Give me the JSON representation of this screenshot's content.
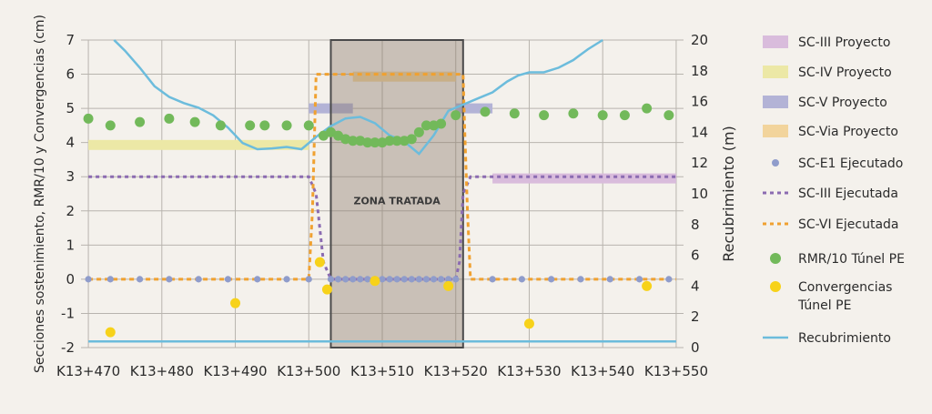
{
  "chart_data": {
    "type": "line",
    "x_categories": [
      "K13+470",
      "K13+480",
      "K13+490",
      "K13+500",
      "K13+510",
      "K13+520",
      "K13+530",
      "K13+540",
      "K13+550"
    ],
    "x_chainage_m": [
      470,
      480,
      490,
      500,
      510,
      520,
      530,
      540,
      550
    ],
    "xlim": [
      469,
      551
    ],
    "y_left": {
      "label": "Secciones sostenimiento, RMR/10 y Convergencias (cm)",
      "ylim": [
        -2,
        7
      ],
      "ticks": [
        "-2",
        "-1",
        "0",
        "1",
        "2",
        "3",
        "4",
        "5",
        "6",
        "7"
      ]
    },
    "y_right": {
      "label": "Recubrimiento (m)",
      "ylim": [
        0,
        20
      ],
      "ticks": [
        "0",
        "2",
        "4",
        "6",
        "8",
        "10",
        "12",
        "14",
        "16",
        "18",
        "20"
      ]
    },
    "zone": {
      "label": "ZONA TRATADA",
      "x_from": 503,
      "x_to": 521
    },
    "legend": {
      "placement": "right",
      "items": [
        {
          "name": "SC-III Proyecto",
          "color": "#d9bcdc",
          "kind": "band"
        },
        {
          "name": "SC-IV Proyecto",
          "color": "#ece8a6",
          "kind": "band"
        },
        {
          "name": "SC-V Proyecto",
          "color": "#b3b3d6",
          "kind": "band"
        },
        {
          "name": "SC-Via Proyecto",
          "color": "#f2d49c",
          "kind": "band"
        },
        {
          "name": "SC-E1 Ejecutado",
          "color": "#8f9ccb",
          "kind": "dot"
        },
        {
          "name": "SC-III Ejecutada",
          "color": "#8b6bb1",
          "kind": "dash"
        },
        {
          "name": "SC-VI Ejecutada",
          "color": "#f0a130",
          "kind": "dash"
        },
        {
          "name": "RMR/10 Túnel PE",
          "color": "#72b95a",
          "kind": "bigdot"
        },
        {
          "name": "Convergencias Túnel PE",
          "color": "#f7d21a",
          "kind": "bigdot"
        },
        {
          "name": "Recubrimiento",
          "color": "#6cbcdc",
          "kind": "line"
        }
      ]
    },
    "bands": [
      {
        "series": "SC-IV Proyecto",
        "x_from": 470,
        "x_to": 500,
        "y_center": 3.93
      },
      {
        "series": "SC-V Proyecto",
        "x_from": 500,
        "x_to": 506,
        "y_center": 5.0
      },
      {
        "series": "SC-Via Proyecto",
        "x_from": 506,
        "x_to": 520,
        "y_center": 5.93
      },
      {
        "series": "SC-V Proyecto",
        "x_from": 520,
        "x_to": 525,
        "y_center": 5.0
      },
      {
        "series": "SC-III Proyecto",
        "x_from": 525,
        "x_to": 550,
        "y_center": 2.95
      }
    ],
    "series": [
      {
        "name": "SC-III Ejecutada",
        "values_xy": [
          [
            470,
            3
          ],
          [
            500,
            3
          ],
          [
            501,
            2.5
          ],
          [
            502,
            0.5
          ],
          [
            503,
            0
          ],
          [
            520,
            0
          ],
          [
            520.5,
            0.5
          ],
          [
            521,
            2.5
          ],
          [
            522,
            3
          ],
          [
            550,
            3
          ]
        ]
      },
      {
        "name": "SC-VI Ejecutada",
        "values_xy": [
          [
            470,
            0
          ],
          [
            500,
            0
          ],
          [
            500.5,
            2
          ],
          [
            501,
            6
          ],
          [
            501.8,
            6
          ],
          [
            521,
            6
          ],
          [
            521.2,
            4.5
          ],
          [
            521.6,
            2
          ],
          [
            522,
            0
          ],
          [
            550,
            0
          ]
        ]
      },
      {
        "name": "SC-E1 Ejecutado",
        "x": [
          470,
          473,
          477,
          481,
          485,
          489,
          493,
          497,
          500,
          503,
          504,
          505,
          506,
          507,
          508,
          509,
          510,
          511,
          512,
          513,
          514,
          515,
          516,
          517,
          518,
          519,
          520,
          525,
          529,
          533,
          537,
          541,
          545,
          549
        ],
        "y_all": 0
      },
      {
        "name": "RMR/10 Túnel PE",
        "values_xy": [
          [
            470,
            4.7
          ],
          [
            473,
            4.5
          ],
          [
            477,
            4.6
          ],
          [
            481,
            4.7
          ],
          [
            484.5,
            4.6
          ],
          [
            488,
            4.5
          ],
          [
            492,
            4.5
          ],
          [
            494,
            4.5
          ],
          [
            497,
            4.5
          ],
          [
            500,
            4.5
          ],
          [
            502,
            4.2
          ],
          [
            503,
            4.3
          ],
          [
            504,
            4.2
          ],
          [
            505,
            4.1
          ],
          [
            506,
            4.05
          ],
          [
            507,
            4.05
          ],
          [
            508,
            4.0
          ],
          [
            509,
            4.0
          ],
          [
            510,
            4.0
          ],
          [
            511,
            4.05
          ],
          [
            512,
            4.05
          ],
          [
            513,
            4.05
          ],
          [
            514,
            4.1
          ],
          [
            515,
            4.3
          ],
          [
            516,
            4.5
          ],
          [
            517,
            4.5
          ],
          [
            518,
            4.55
          ],
          [
            520,
            4.8
          ],
          [
            524,
            4.9
          ],
          [
            528,
            4.85
          ],
          [
            532,
            4.8
          ],
          [
            536,
            4.85
          ],
          [
            540,
            4.8
          ],
          [
            543,
            4.8
          ],
          [
            546,
            5.0
          ],
          [
            549,
            4.8
          ]
        ]
      },
      {
        "name": "Convergencias Túnel PE",
        "values_xy": [
          [
            473,
            -1.55
          ],
          [
            490,
            -0.7
          ],
          [
            501.5,
            0.5
          ],
          [
            502.5,
            -0.3
          ],
          [
            509,
            -0.05
          ],
          [
            519,
            -0.2
          ],
          [
            530,
            -1.3
          ],
          [
            546,
            -0.2
          ]
        ]
      },
      {
        "name": "Recubrimiento",
        "axis": "right",
        "values_xy": [
          [
            473.5,
            20
          ],
          [
            475,
            19.3
          ],
          [
            477,
            18.2
          ],
          [
            479,
            17.0
          ],
          [
            481,
            16.3
          ],
          [
            483,
            15.9
          ],
          [
            485,
            15.6
          ],
          [
            487,
            15.1
          ],
          [
            489,
            14.3
          ],
          [
            491,
            13.3
          ],
          [
            493,
            12.9
          ],
          [
            495,
            12.95
          ],
          [
            497,
            13.05
          ],
          [
            499,
            12.9
          ],
          [
            501,
            13.7
          ],
          [
            503,
            14.4
          ],
          [
            505,
            14.9
          ],
          [
            507,
            15.0
          ],
          [
            509,
            14.6
          ],
          [
            511,
            13.8
          ],
          [
            513,
            13.4
          ],
          [
            515,
            12.6
          ],
          [
            517,
            13.8
          ],
          [
            519,
            15.4
          ],
          [
            521,
            15.8
          ],
          [
            523,
            16.2
          ],
          [
            525,
            16.6
          ],
          [
            527,
            17.3
          ],
          [
            528.5,
            17.7
          ],
          [
            530,
            17.9
          ],
          [
            532,
            17.9
          ],
          [
            534,
            18.2
          ],
          [
            536,
            18.7
          ],
          [
            538,
            19.4
          ],
          [
            540,
            20
          ]
        ]
      },
      {
        "name": "Recubrimiento-base",
        "axis": "right",
        "values_xy": [
          [
            470,
            0.4
          ],
          [
            550,
            0.4
          ]
        ]
      }
    ]
  }
}
